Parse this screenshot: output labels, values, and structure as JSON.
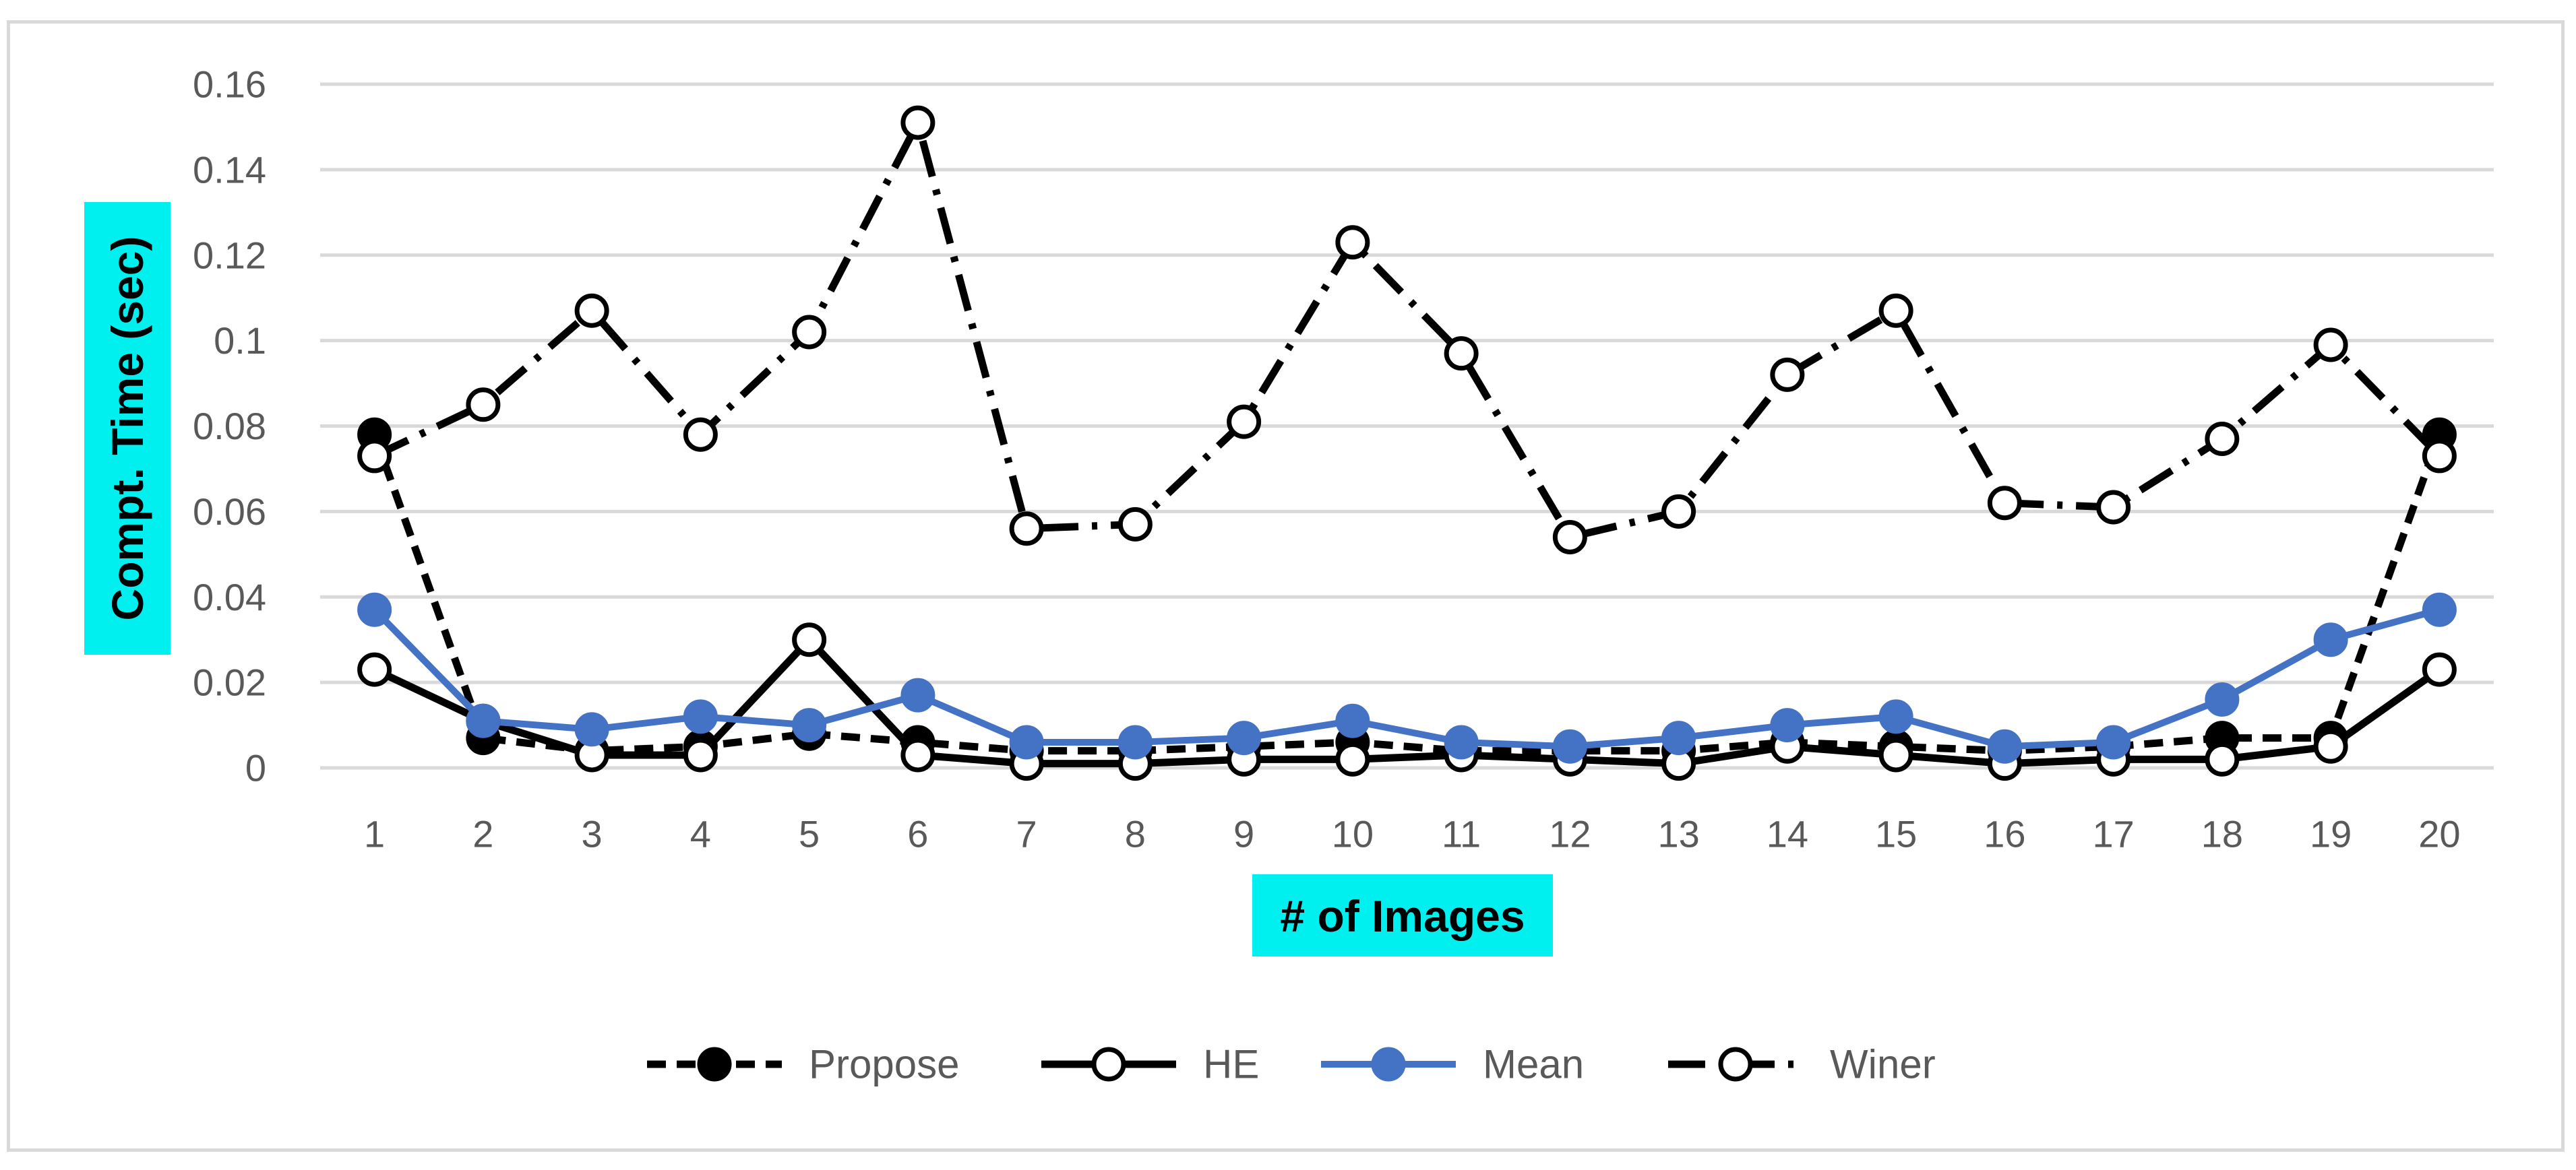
{
  "chart_data": {
    "type": "line",
    "title": "",
    "xlabel": "# of Images",
    "ylabel": "Compt. Time (sec)",
    "label_highlight_color": "#00f0f0",
    "grid": true,
    "legend_position": "bottom",
    "ylim": [
      0,
      0.16
    ],
    "yticks": [
      "0",
      "0.02",
      "0.04",
      "0.06",
      "0.08",
      "0.1",
      "0.12",
      "0.14",
      "0.16"
    ],
    "categories": [
      "1",
      "2",
      "3",
      "4",
      "5",
      "6",
      "7",
      "8",
      "9",
      "10",
      "11",
      "12",
      "13",
      "14",
      "15",
      "16",
      "17",
      "18",
      "19",
      "20"
    ],
    "series": [
      {
        "name": "Propose",
        "color": "#000000",
        "line_style": "dashed",
        "marker": "filled-circle",
        "values": [
          0.078,
          0.007,
          0.004,
          0.005,
          0.008,
          0.006,
          0.004,
          0.004,
          0.005,
          0.006,
          0.004,
          0.004,
          0.004,
          0.006,
          0.005,
          0.004,
          0.005,
          0.007,
          0.007,
          0.078
        ]
      },
      {
        "name": "HE",
        "color": "#000000",
        "line_style": "solid",
        "marker": "open-circle",
        "values": [
          0.023,
          0.011,
          0.003,
          0.003,
          0.03,
          0.003,
          0.001,
          0.001,
          0.002,
          0.002,
          0.003,
          0.002,
          0.001,
          0.005,
          0.003,
          0.001,
          0.002,
          0.002,
          0.005,
          0.023
        ]
      },
      {
        "name": "Mean",
        "color": "#4472c4",
        "line_style": "solid",
        "marker": "filled-circle",
        "values": [
          0.037,
          0.011,
          0.009,
          0.012,
          0.01,
          0.017,
          0.006,
          0.006,
          0.007,
          0.011,
          0.006,
          0.005,
          0.007,
          0.01,
          0.012,
          0.005,
          0.006,
          0.016,
          0.03,
          0.037
        ]
      },
      {
        "name": "Winer",
        "color": "#000000",
        "line_style": "dash-dot",
        "marker": "open-circle",
        "values": [
          0.073,
          0.085,
          0.107,
          0.078,
          0.102,
          0.151,
          0.056,
          0.057,
          0.081,
          0.123,
          0.097,
          0.054,
          0.06,
          0.092,
          0.107,
          0.062,
          0.061,
          0.077,
          0.099,
          0.073
        ]
      }
    ]
  }
}
